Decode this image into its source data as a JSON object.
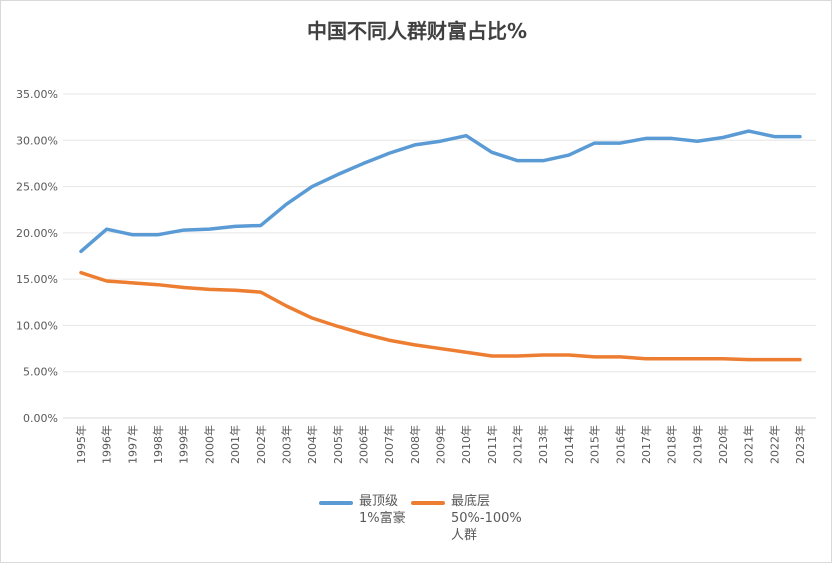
{
  "chart_data": {
    "type": "line",
    "title": "中国不同人群财富占比%",
    "xlabel": "",
    "ylabel": "",
    "ylim": [
      0,
      35
    ],
    "yticks": [
      "0.00%",
      "5.00%",
      "10.00%",
      "15.00%",
      "20.00%",
      "25.00%",
      "30.00%",
      "35.00%"
    ],
    "grid": true,
    "legend_position": "bottom",
    "categories": [
      "1995年",
      "1996年",
      "1997年",
      "1998年",
      "1999年",
      "2000年",
      "2001年",
      "2002年",
      "2003年",
      "2004年",
      "2005年",
      "2006年",
      "2007年",
      "2008年",
      "2009年",
      "2010年",
      "2011年",
      "2012年",
      "2013年",
      "2014年",
      "2015年",
      "2016年",
      "2017年",
      "2018年",
      "2019年",
      "2020年",
      "2021年",
      "2022年",
      "2023年"
    ],
    "series": [
      {
        "name": "最顶级1%富豪",
        "legend_lines": [
          "最顶级",
          "1%富豪"
        ],
        "color": "#5b9bd5",
        "values": [
          18.0,
          20.4,
          19.8,
          19.8,
          20.3,
          20.4,
          20.7,
          20.8,
          23.1,
          25.0,
          26.3,
          27.5,
          28.6,
          29.5,
          29.9,
          30.5,
          28.7,
          27.8,
          27.8,
          28.4,
          29.7,
          29.7,
          30.2,
          30.2,
          29.9,
          30.3,
          31.0,
          30.4,
          30.4
        ]
      },
      {
        "name": "最底层50%-100%人群",
        "legend_lines": [
          "最底层",
          "50%-100%",
          "人群"
        ],
        "color": "#ed7d31",
        "values": [
          15.7,
          14.8,
          14.6,
          14.4,
          14.1,
          13.9,
          13.8,
          13.6,
          12.1,
          10.8,
          9.9,
          9.1,
          8.4,
          7.9,
          7.5,
          7.1,
          6.7,
          6.7,
          6.8,
          6.8,
          6.6,
          6.6,
          6.4,
          6.4,
          6.4,
          6.4,
          6.3,
          6.3,
          6.3
        ]
      }
    ]
  }
}
